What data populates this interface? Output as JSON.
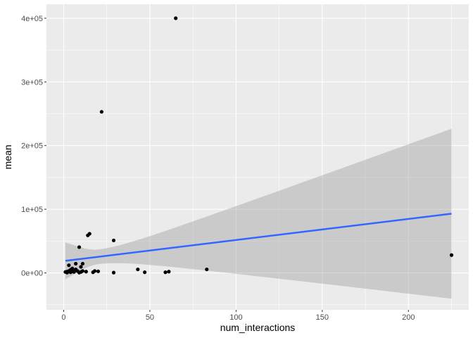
{
  "chart_data": {
    "type": "scatter",
    "xlabel": "num_interactions",
    "ylabel": "mean",
    "xlim": [
      -10,
      235
    ],
    "ylim": [
      -58000,
      422000
    ],
    "x_ticks": [
      0,
      50,
      100,
      150,
      200
    ],
    "x_tick_labels": [
      "0",
      "50",
      "100",
      "150",
      "200"
    ],
    "y_ticks": [
      0,
      100000,
      200000,
      300000,
      400000
    ],
    "y_tick_labels": [
      "0e+00",
      "1e+05",
      "2e+05",
      "3e+05",
      "4e+05"
    ],
    "grid": true,
    "points": [
      {
        "x": 1,
        "y": 1500
      },
      {
        "x": 2,
        "y": 2000
      },
      {
        "x": 2,
        "y": 500
      },
      {
        "x": 3,
        "y": 12000
      },
      {
        "x": 3,
        "y": 3000
      },
      {
        "x": 4,
        "y": 1000
      },
      {
        "x": 4,
        "y": 5000
      },
      {
        "x": 5,
        "y": 2500
      },
      {
        "x": 5,
        "y": 7000
      },
      {
        "x": 6,
        "y": 4000
      },
      {
        "x": 6,
        "y": 1500
      },
      {
        "x": 7,
        "y": 5500
      },
      {
        "x": 7,
        "y": 14500
      },
      {
        "x": 8,
        "y": 3000
      },
      {
        "x": 9,
        "y": 40500
      },
      {
        "x": 9,
        "y": 500
      },
      {
        "x": 10,
        "y": 9500
      },
      {
        "x": 10,
        "y": 1500
      },
      {
        "x": 11,
        "y": 14500
      },
      {
        "x": 11,
        "y": 3000
      },
      {
        "x": 13,
        "y": 2000
      },
      {
        "x": 14,
        "y": 59000
      },
      {
        "x": 15,
        "y": 61500
      },
      {
        "x": 17,
        "y": 1000
      },
      {
        "x": 18,
        "y": 3000
      },
      {
        "x": 20,
        "y": 2500
      },
      {
        "x": 22,
        "y": 253000
      },
      {
        "x": 29,
        "y": 51000
      },
      {
        "x": 29,
        "y": 500
      },
      {
        "x": 43,
        "y": 5500
      },
      {
        "x": 47,
        "y": 1000
      },
      {
        "x": 59,
        "y": 1000
      },
      {
        "x": 61,
        "y": 2000
      },
      {
        "x": 65,
        "y": 400000
      },
      {
        "x": 83,
        "y": 5500
      },
      {
        "x": 225,
        "y": 28000
      }
    ],
    "smooth": {
      "method": "linear",
      "x": [
        1,
        225
      ],
      "y": [
        19000,
        93000
      ],
      "ci_lower": [
        -10000,
        -40000
      ],
      "ci_upper": [
        48000,
        227000
      ]
    },
    "colors": {
      "panel_background": "#ebebeb",
      "grid_major": "#ffffff",
      "point": "#000000",
      "line": "#3366ff",
      "ribbon": "#999999"
    }
  }
}
